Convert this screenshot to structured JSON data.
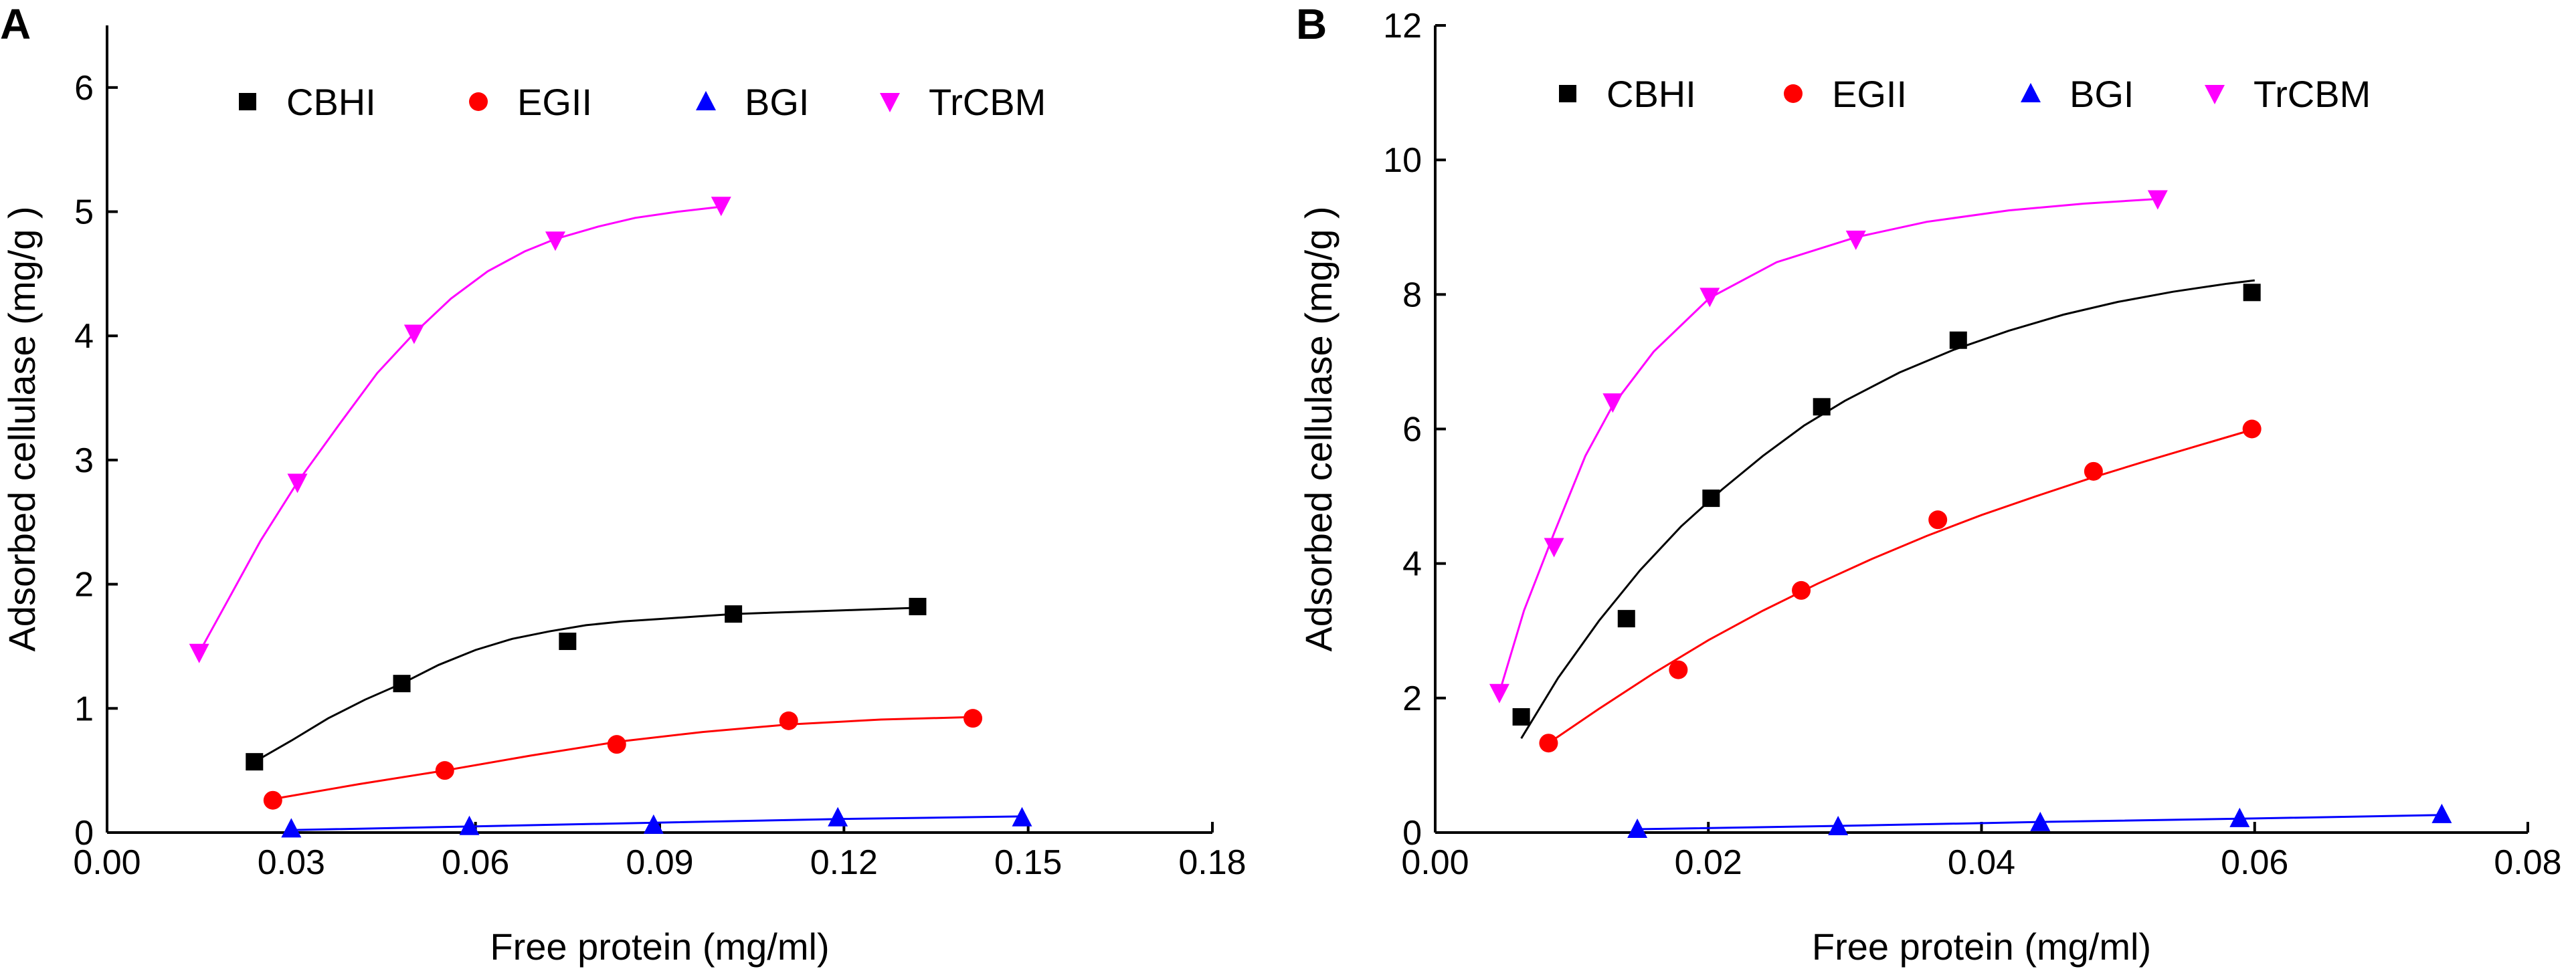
{
  "chart_data": [
    {
      "panel": "A",
      "type": "scatter",
      "title": "",
      "xlabel": "Free protein (mg/ml)",
      "ylabel": "Adsorbed cellulase (mg/g )",
      "xlim": [
        0.0,
        0.18
      ],
      "ylim": [
        0,
        6.5
      ],
      "xticks": [
        "0.00",
        "0.03",
        "0.06",
        "0.09",
        "0.12",
        "0.15",
        "0.18"
      ],
      "yticks": [
        "0",
        "1",
        "2",
        "3",
        "4",
        "5",
        "6"
      ],
      "legend_position": "top",
      "series": [
        {
          "name": "CBHI",
          "marker": "square",
          "color": "#000000",
          "x": [
            0.024,
            0.048,
            0.075,
            0.102,
            0.132
          ],
          "y": [
            0.57,
            1.2,
            1.54,
            1.76,
            1.82
          ],
          "fit_x": [
            0.024,
            0.03,
            0.036,
            0.042,
            0.048,
            0.054,
            0.06,
            0.066,
            0.072,
            0.078,
            0.084,
            0.09,
            0.096,
            0.102,
            0.108,
            0.114,
            0.12,
            0.126,
            0.132
          ],
          "fit_y": [
            0.57,
            0.74,
            0.92,
            1.07,
            1.2,
            1.35,
            1.47,
            1.56,
            1.62,
            1.67,
            1.7,
            1.72,
            1.74,
            1.76,
            1.77,
            1.78,
            1.79,
            1.8,
            1.81
          ]
        },
        {
          "name": "EGII",
          "marker": "circle",
          "color": "#ff0000",
          "x": [
            0.027,
            0.055,
            0.083,
            0.111,
            0.141
          ],
          "y": [
            0.26,
            0.5,
            0.71,
            0.9,
            0.92
          ],
          "fit_x": [
            0.027,
            0.041,
            0.055,
            0.069,
            0.083,
            0.097,
            0.111,
            0.126,
            0.141
          ],
          "fit_y": [
            0.27,
            0.39,
            0.5,
            0.62,
            0.73,
            0.81,
            0.87,
            0.91,
            0.93
          ]
        },
        {
          "name": "BGI",
          "marker": "triangle-up",
          "color": "#0000ff",
          "x": [
            0.03,
            0.059,
            0.089,
            0.119,
            0.149
          ],
          "y": [
            0.03,
            0.05,
            0.06,
            0.12,
            0.12
          ],
          "fit_x": [
            0.03,
            0.06,
            0.09,
            0.12,
            0.149
          ],
          "fit_y": [
            0.02,
            0.05,
            0.08,
            0.11,
            0.13
          ]
        },
        {
          "name": "TrCBM",
          "marker": "triangle-down",
          "color": "#ff00ff",
          "x": [
            0.015,
            0.031,
            0.05,
            0.073,
            0.1
          ],
          "y": [
            1.45,
            2.82,
            4.02,
            4.77,
            5.05
          ],
          "fit_x": [
            0.015,
            0.02,
            0.025,
            0.031,
            0.038,
            0.044,
            0.05,
            0.056,
            0.062,
            0.068,
            0.073,
            0.08,
            0.086,
            0.093,
            0.1
          ],
          "fit_y": [
            1.45,
            1.9,
            2.35,
            2.82,
            3.3,
            3.7,
            4.02,
            4.3,
            4.52,
            4.68,
            4.78,
            4.88,
            4.95,
            5.0,
            5.04
          ]
        }
      ]
    },
    {
      "panel": "B",
      "type": "scatter",
      "title": "",
      "xlabel": "Free protein (mg/ml)",
      "ylabel": "Adsorbed cellulase (mg/g )",
      "xlim": [
        0.0,
        0.08
      ],
      "ylim": [
        0,
        12
      ],
      "xticks": [
        "0.00",
        "0.02",
        "0.04",
        "0.06",
        "0.08"
      ],
      "yticks": [
        "0",
        "2",
        "4",
        "6",
        "8",
        "10",
        "12"
      ],
      "legend_position": "top",
      "series": [
        {
          "name": "CBHI",
          "marker": "square",
          "color": "#000000",
          "x": [
            0.0063,
            0.014,
            0.0202,
            0.0283,
            0.0383,
            0.0598
          ],
          "y": [
            1.72,
            3.18,
            4.97,
            6.33,
            7.32,
            8.03
          ],
          "fit_x": [
            0.0063,
            0.009,
            0.012,
            0.015,
            0.018,
            0.021,
            0.024,
            0.027,
            0.03,
            0.034,
            0.038,
            0.042,
            0.046,
            0.05,
            0.054,
            0.058,
            0.06
          ],
          "fit_y": [
            1.4,
            2.3,
            3.15,
            3.9,
            4.55,
            5.1,
            5.6,
            6.05,
            6.42,
            6.84,
            7.18,
            7.46,
            7.7,
            7.89,
            8.04,
            8.16,
            8.21
          ]
        },
        {
          "name": "EGII",
          "marker": "circle",
          "color": "#ff0000",
          "x": [
            0.0083,
            0.0178,
            0.0268,
            0.0368,
            0.0482,
            0.0598
          ],
          "y": [
            1.33,
            2.42,
            3.6,
            4.65,
            5.37,
            6.0
          ],
          "fit_x": [
            0.0083,
            0.012,
            0.016,
            0.02,
            0.024,
            0.028,
            0.032,
            0.036,
            0.04,
            0.044,
            0.048,
            0.052,
            0.056,
            0.06
          ],
          "fit_y": [
            1.33,
            1.84,
            2.37,
            2.86,
            3.3,
            3.7,
            4.07,
            4.41,
            4.72,
            5.0,
            5.27,
            5.52,
            5.76,
            6.0
          ]
        },
        {
          "name": "BGI",
          "marker": "triangle-up",
          "color": "#0000ff",
          "x": [
            0.0148,
            0.0295,
            0.0443,
            0.0589,
            0.0737
          ],
          "y": [
            0.05,
            0.09,
            0.15,
            0.21,
            0.27
          ],
          "fit_x": [
            0.0148,
            0.03,
            0.045,
            0.06,
            0.0737
          ],
          "fit_y": [
            0.05,
            0.1,
            0.16,
            0.21,
            0.26
          ]
        },
        {
          "name": "TrCBM",
          "marker": "triangle-down",
          "color": "#ff00ff",
          "x": [
            0.0047,
            0.0087,
            0.013,
            0.0201,
            0.0308,
            0.0529
          ],
          "y": [
            2.08,
            4.25,
            6.4,
            7.97,
            8.82,
            9.42
          ],
          "fit_x": [
            0.0047,
            0.0065,
            0.0087,
            0.011,
            0.013,
            0.016,
            0.0201,
            0.025,
            0.0308,
            0.036,
            0.042,
            0.0475,
            0.0529
          ],
          "fit_y": [
            2.08,
            3.3,
            4.45,
            5.6,
            6.35,
            7.15,
            7.95,
            8.48,
            8.85,
            9.08,
            9.25,
            9.35,
            9.42
          ]
        }
      ]
    }
  ]
}
